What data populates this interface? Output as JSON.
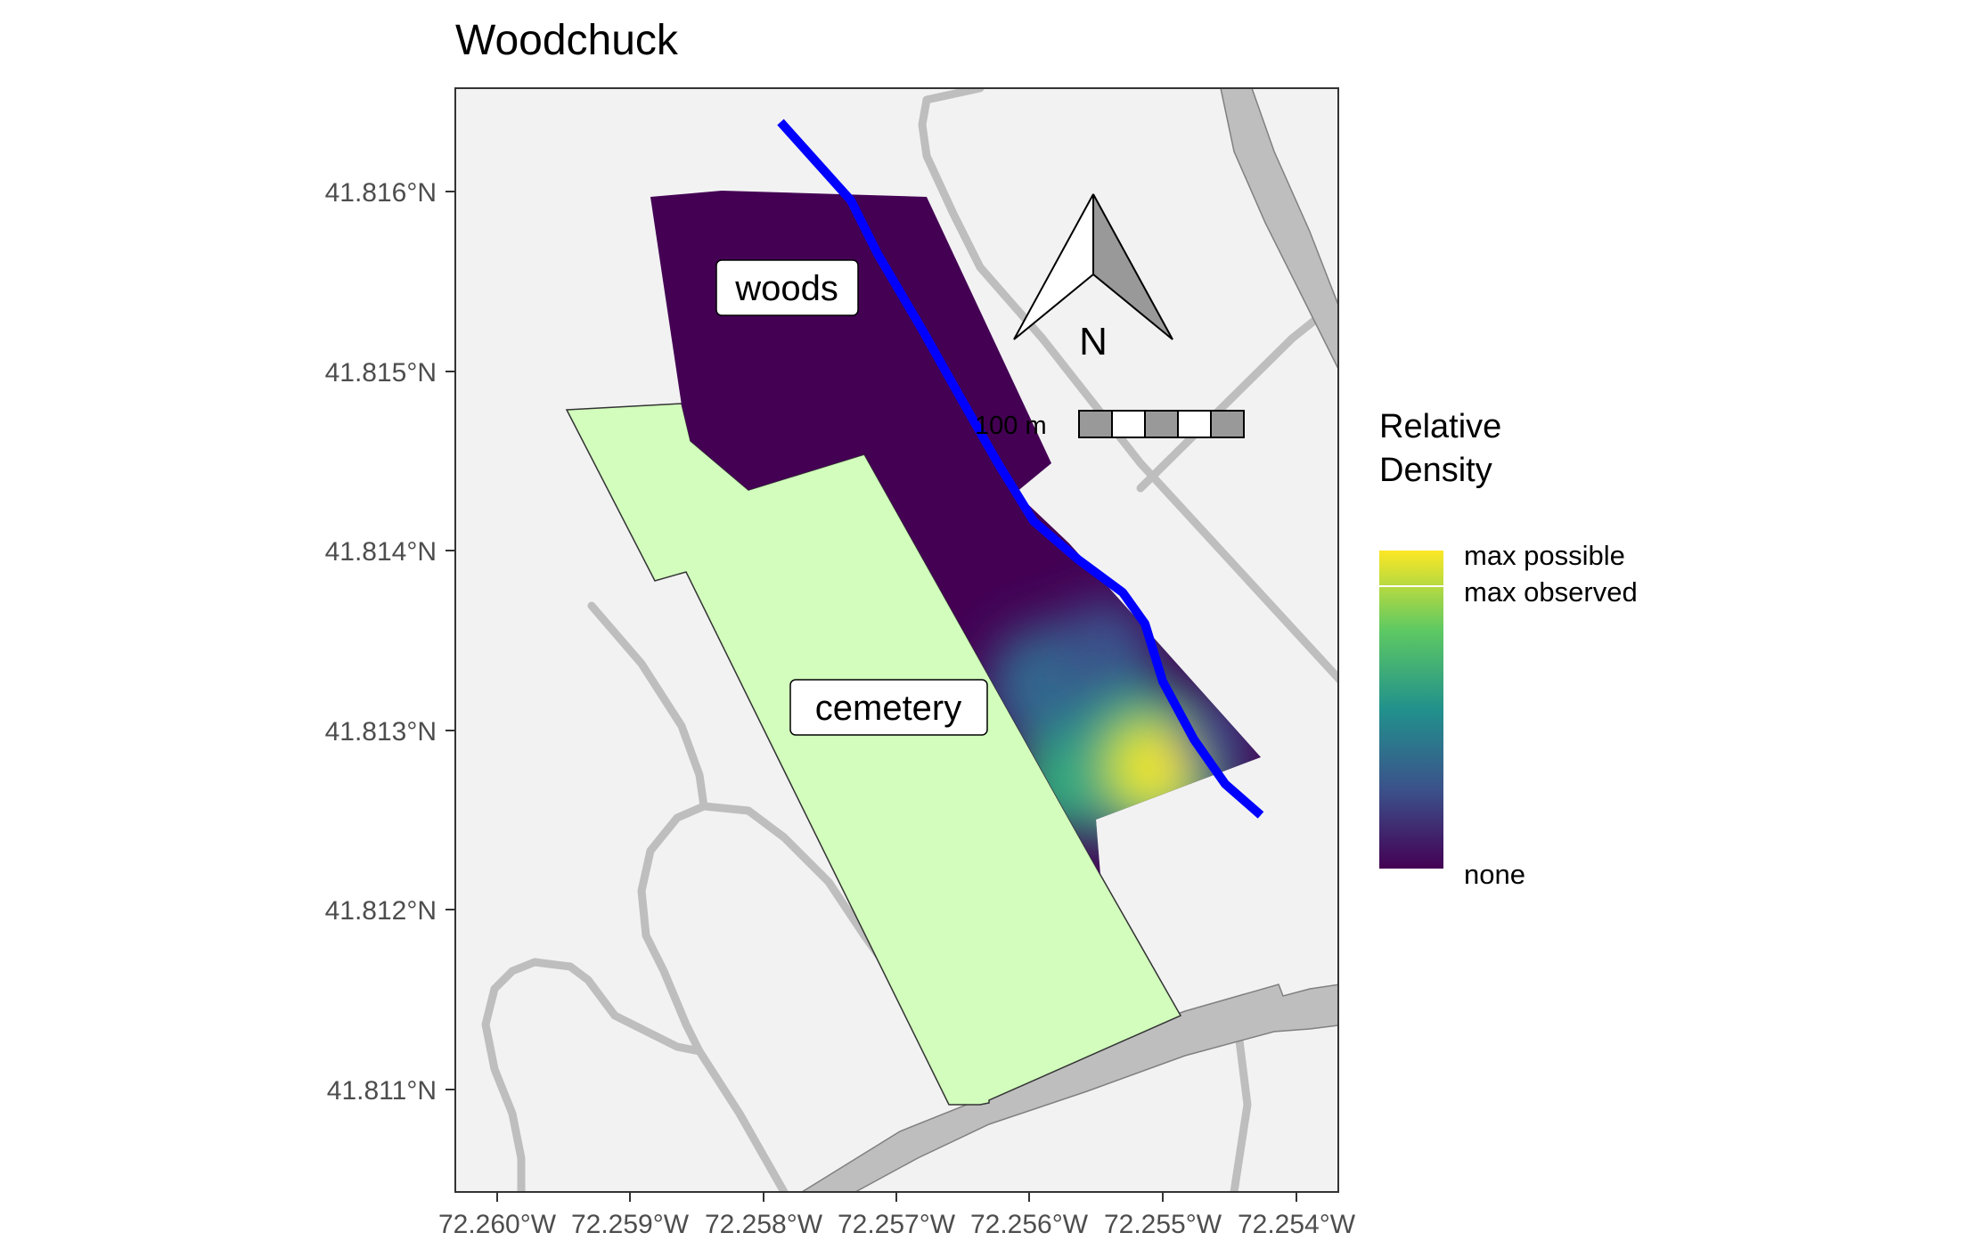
{
  "title": "Woodchuck",
  "axes": {
    "y_ticks": [
      "41.816°N",
      "41.815°N",
      "41.814°N",
      "41.813°N",
      "41.812°N",
      "41.811°N"
    ],
    "x_ticks": [
      "72.260°W",
      "72.259°W",
      "72.258°W",
      "72.257°W",
      "72.256°W",
      "72.255°W",
      "72.254°W"
    ]
  },
  "map_labels": {
    "woods": "woods",
    "cemetery": "cemetery"
  },
  "north_arrow": {
    "label": "N"
  },
  "scale_bar": {
    "label": "100 m"
  },
  "legend": {
    "title_line1": "Relative",
    "title_line2": "Density",
    "labels": {
      "max_possible": "max possible",
      "max_observed": "max observed",
      "none": "none"
    },
    "gradient_colors": [
      "#440154",
      "#3b528b",
      "#21918c",
      "#5ec962",
      "#fde725"
    ]
  },
  "colors": {
    "panel_background": "#f2f2f2",
    "road": "#bebebe",
    "cemetery_fill": "#d2fdbd",
    "woods_fill": "#440154",
    "stream": "#0000ff",
    "hotspot": "#fde725"
  }
}
